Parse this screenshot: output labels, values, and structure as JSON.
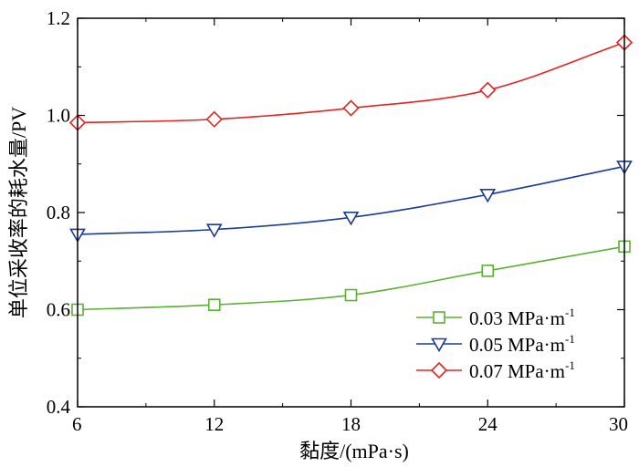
{
  "chart_data": {
    "type": "line",
    "xlabel": "黏度/(mPa·s)",
    "ylabel": "单位采收率的耗水量/PV",
    "x": [
      6,
      12,
      18,
      24,
      30
    ],
    "xlim": [
      6,
      30
    ],
    "ylim": [
      0.4,
      1.2
    ],
    "xticks": [
      6,
      12,
      18,
      24,
      30
    ],
    "yticks": [
      0.4,
      0.6,
      0.8,
      1.0,
      1.2
    ],
    "xtick_labels": [
      "6",
      "12",
      "18",
      "24",
      "30"
    ],
    "ytick_labels": [
      "0.4",
      "0.6",
      "0.8",
      "1.0",
      "1.2"
    ],
    "grid": false,
    "legend_position": "bottom-right",
    "series": [
      {
        "name": "0.03 MPa·m",
        "superscript": "-1",
        "color": "#5bb132",
        "marker": "square",
        "values": [
          0.6,
          0.61,
          0.63,
          0.68,
          0.73
        ]
      },
      {
        "name": "0.05 MPa·m",
        "superscript": "-1",
        "color": "#1a3b96",
        "marker": "triangle-down",
        "values": [
          0.755,
          0.765,
          0.79,
          0.837,
          0.895
        ]
      },
      {
        "name": "0.07 MPa·m",
        "superscript": "-1",
        "color": "#e8231f",
        "marker": "diamond",
        "values": [
          0.985,
          0.992,
          1.015,
          1.052,
          1.15
        ]
      }
    ]
  }
}
